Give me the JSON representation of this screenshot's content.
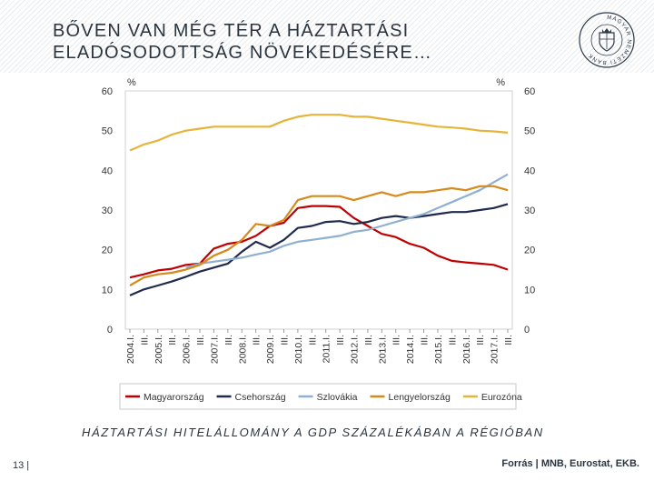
{
  "slide": {
    "title_line1": "BŐVEN VAN MÉG TÉR A HÁZTARTÁSI",
    "title_line2": "ELADÓSODOTTSÁG NÖVEKEDÉSÉRE…",
    "subtitle": "HÁZTARTÁSI HITELÁLLOMÁNY A GDP SZÁZALÉKÁBAN A RÉGIÓBAN",
    "page_number": "13 |",
    "source": "Forrás | MNB, Eurostat, EKB.",
    "logo_text": "MAGYAR NEMZETI BANK"
  },
  "chart_data": {
    "type": "line",
    "y_unit_left": "%",
    "y_unit_right": "%",
    "ylim": [
      0,
      60
    ],
    "yticks": [
      0,
      10,
      20,
      30,
      40,
      50,
      60
    ],
    "x_labels": [
      "2004.I.",
      "III.",
      "2005.I.",
      "III.",
      "2006.I.",
      "III.",
      "2007.I.",
      "III.",
      "2008.I.",
      "III.",
      "2009.I.",
      "III.",
      "2010.I.",
      "III.",
      "2011.I.",
      "III.",
      "2012.I.",
      "III.",
      "2013.I.",
      "III.",
      "2014.I.",
      "III.",
      "2015.I.",
      "III.",
      "2016.I.",
      "III.",
      "2017.I.",
      "III."
    ],
    "series": [
      {
        "name": "Magyarország",
        "color": "#c00000",
        "values": [
          13.0,
          13.8,
          14.8,
          15.2,
          16.2,
          16.5,
          20.3,
          21.5,
          22.0,
          23.5,
          26.0,
          26.8,
          30.5,
          31.0,
          31.0,
          30.8,
          28.0,
          26.0,
          24.0,
          23.2,
          21.5,
          20.5,
          18.5,
          17.2,
          16.8,
          16.5,
          16.2,
          15.0
        ]
      },
      {
        "name": "Csehország",
        "color": "#1f2a4d",
        "values": [
          8.5,
          10.0,
          11.0,
          12.0,
          13.2,
          14.5,
          15.5,
          16.5,
          19.5,
          22.0,
          20.5,
          22.5,
          25.5,
          26.0,
          27.0,
          27.2,
          26.5,
          27.0,
          28.0,
          28.5,
          28.0,
          28.5,
          29.0,
          29.5,
          29.5,
          30.0,
          30.5,
          31.5
        ]
      },
      {
        "name": "Szlovákia",
        "color": "#8fb0d0",
        "values": [
          null,
          null,
          null,
          null,
          15.5,
          16.5,
          17.0,
          17.5,
          18.0,
          18.8,
          19.5,
          21.0,
          22.0,
          22.5,
          23.0,
          23.5,
          24.5,
          25.0,
          26.0,
          27.0,
          28.0,
          29.0,
          30.5,
          32.0,
          33.5,
          35.0,
          37.0,
          39.0
        ]
      },
      {
        "name": "Lengyelország",
        "color": "#d58a1c",
        "values": [
          11.0,
          13.0,
          13.8,
          14.2,
          15.0,
          16.2,
          18.5,
          20.0,
          22.5,
          26.5,
          26.0,
          27.5,
          32.5,
          33.5,
          33.5,
          33.5,
          32.5,
          33.5,
          34.5,
          33.5,
          34.5,
          34.5,
          35.0,
          35.5,
          35.0,
          36.0,
          36.0,
          35.0
        ]
      },
      {
        "name": "Eurozóna",
        "color": "#e6b43a",
        "values": [
          45.0,
          46.5,
          47.5,
          49.0,
          50.0,
          50.5,
          51.0,
          51.0,
          51.0,
          51.0,
          51.0,
          52.5,
          53.5,
          54.0,
          54.0,
          54.0,
          53.5,
          53.5,
          53.0,
          52.5,
          52.0,
          51.5,
          51.0,
          50.8,
          50.5,
          50.0,
          49.8,
          49.5
        ]
      }
    ]
  }
}
